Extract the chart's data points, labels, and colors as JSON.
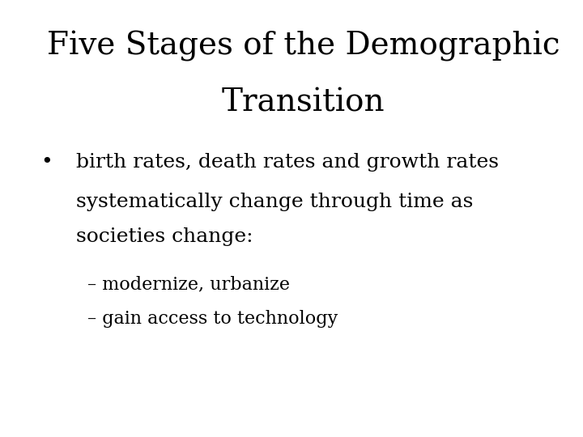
{
  "title_line1": "Five Stages of the Demographic",
  "title_line2": "Transition",
  "title_fontsize": 28,
  "title_font": "DejaVu Serif",
  "background_color": "#ffffff",
  "text_color": "#000000",
  "bullet_text_line1": "birth rates, death rates and growth rates",
  "bullet_text_line2": "systematically change through time as",
  "bullet_text_line3": "societies change:",
  "sub_item1": "– modernize, urbanize",
  "sub_item2": "– gain access to technology",
  "body_fontsize": 18,
  "sub_fontsize": 16,
  "bullet_symbol": "•"
}
